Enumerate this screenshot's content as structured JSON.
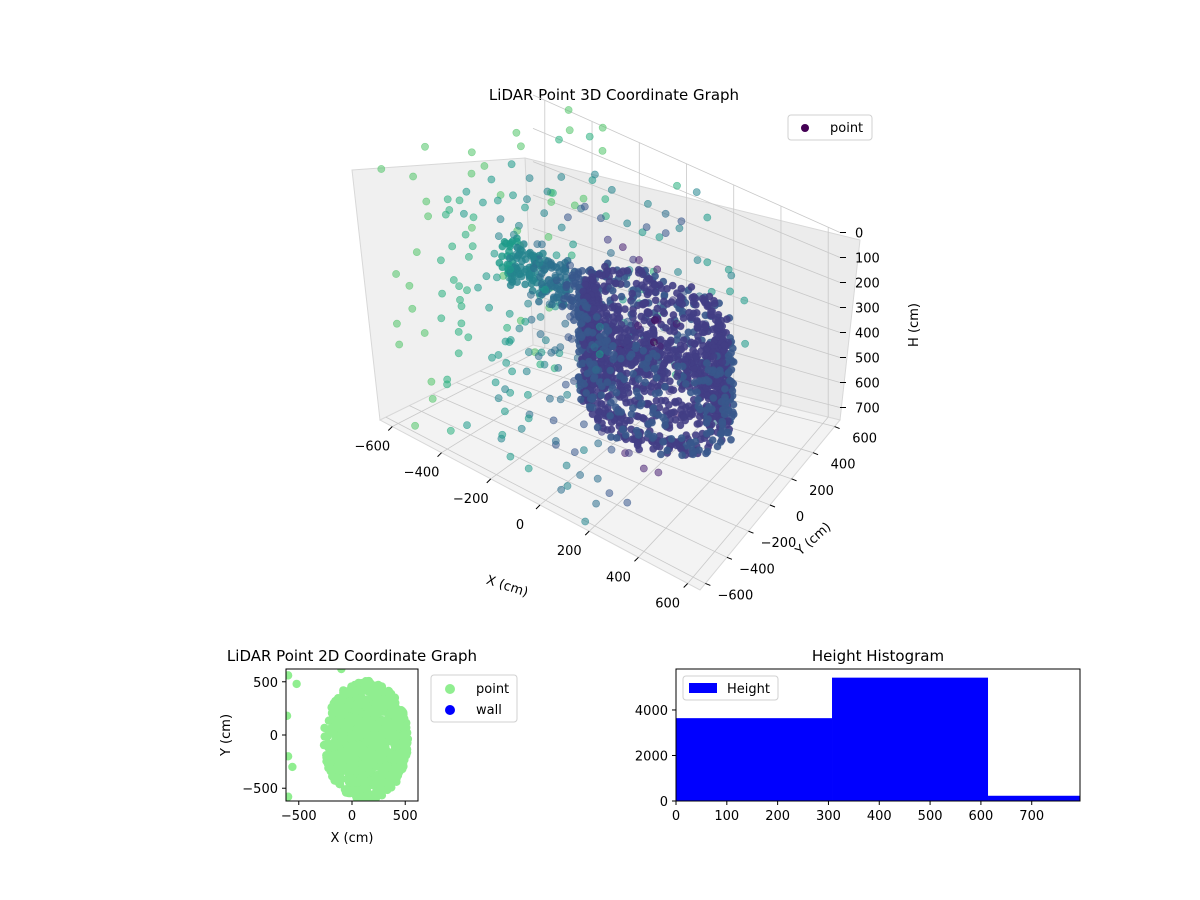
{
  "chart_data": [
    {
      "type": "scatter",
      "title": "LiDAR Point 3D Coordinate Graph",
      "xlabel": "X (cm)",
      "ylabel": "Y (cm)",
      "zlabel": "H (cm)",
      "x_ticks": [
        "−600",
        "−400",
        "−200",
        "0",
        "200",
        "400",
        "600"
      ],
      "y_ticks": [
        "−600",
        "−400",
        "−200",
        "0",
        "200",
        "400",
        "600"
      ],
      "z_ticks": [
        "0",
        "100",
        "200",
        "300",
        "400",
        "500",
        "600",
        "700"
      ],
      "xlim": [
        -650,
        650
      ],
      "ylim": [
        -650,
        650
      ],
      "zlim": [
        0,
        750
      ],
      "z_inverted": true,
      "legend": [
        {
          "label": "point",
          "color": "#440154"
        }
      ],
      "legend_position": "upper-right",
      "colormap": "viridis",
      "grid": true,
      "series": [
        {
          "name": "point",
          "shape": "ring",
          "center": [
            200,
            -50
          ],
          "radius": 280,
          "h_range": [
            180,
            560
          ]
        },
        {
          "name": "point",
          "shape": "arm",
          "from": [
            -450,
            0
          ],
          "to": [
            -80,
            0
          ],
          "h": 350
        },
        {
          "name": "point",
          "shape": "scattered-grid",
          "x_range": [
            -650,
            250
          ],
          "y_range": [
            -650,
            650
          ],
          "h_range": [
            0,
            720
          ]
        }
      ]
    },
    {
      "type": "scatter",
      "title": "LiDAR Point 2D Coordinate Graph",
      "xlabel": "X (cm)",
      "ylabel": "Y (cm)",
      "x_ticks": [
        "−500",
        "0",
        "500"
      ],
      "y_ticks": [
        "−500",
        "0",
        "500"
      ],
      "xlim": [
        -620,
        620
      ],
      "ylim": [
        -620,
        620
      ],
      "legend": [
        {
          "label": "point",
          "color": "#90ee90"
        },
        {
          "label": "wall",
          "color": "#0000ff"
        }
      ],
      "legend_position": "outside-right",
      "shape": {
        "center": [
          130,
          -50
        ],
        "radius_x": 400,
        "radius_y": 560,
        "notch_at_x": -180
      }
    },
    {
      "type": "bar",
      "title": "Height Histogram",
      "xlabel": "",
      "ylabel": "",
      "x_ticks": [
        "0",
        "100",
        "200",
        "300",
        "400",
        "500",
        "600",
        "700"
      ],
      "y_ticks": [
        "0",
        "2000",
        "4000"
      ],
      "xlim": [
        0,
        795
      ],
      "ylim": [
        0,
        5800
      ],
      "bins": [
        [
          0,
          307
        ],
        [
          307,
          614
        ],
        [
          614,
          921
        ]
      ],
      "values": [
        3640,
        5420,
        230
      ],
      "legend": [
        {
          "label": "Height",
          "color": "#0000ff"
        }
      ],
      "legend_position": "upper-left",
      "color": "#0000ff"
    }
  ]
}
